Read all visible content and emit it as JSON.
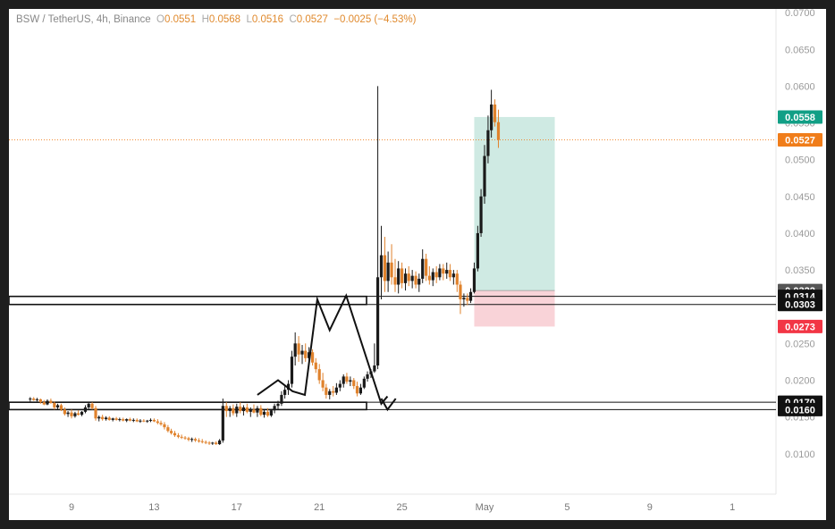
{
  "legend": {
    "symbol": "BSW / TetherUS, 4h, Binance",
    "o_label": "O",
    "o_value": "0.0551",
    "h_label": "H",
    "h_value": "0.0568",
    "l_label": "L",
    "l_value": "0.0516",
    "c_label": "C",
    "c_value": "0.0527",
    "change": "−0.0025 (−4.53%)"
  },
  "colors": {
    "up": "#1a1a1a",
    "down": "#e0822c",
    "last_price": "#f07d1a",
    "target_zone": "#cfeae3",
    "stop_zone": "#f9d3d8",
    "target_label": "#129f86",
    "stop_label": "#f23645",
    "grid_text": "#9a9a9a"
  },
  "chart_data": {
    "type": "candlestick",
    "title": "BSW / TetherUS, 4h, Binance",
    "ylim": [
      0.0045,
      0.0705
    ],
    "y_ticks": [
      "0.0100",
      "0.0150",
      "0.0200",
      "0.0250",
      "0.0300",
      "0.0350",
      "0.0400",
      "0.0450",
      "0.0500",
      "0.0550",
      "0.0600",
      "0.0650",
      "0.0700"
    ],
    "x_ticks": [
      {
        "label": "9",
        "day": 9
      },
      {
        "label": "13",
        "day": 13
      },
      {
        "label": "17",
        "day": 17
      },
      {
        "label": "21",
        "day": 21
      },
      {
        "label": "25",
        "day": 25
      },
      {
        "label": "May",
        "day": 29
      },
      {
        "label": "5",
        "day": 33
      },
      {
        "label": "9",
        "day": 37
      },
      {
        "label": "1",
        "day": 41
      }
    ],
    "price_labels": [
      {
        "value": "0.0558",
        "price": 0.0558,
        "style": "target"
      },
      {
        "value": "0.0527",
        "price": 0.0527,
        "style": "last"
      },
      {
        "value": "0.0322",
        "price": 0.0322,
        "style": "gray"
      },
      {
        "value": "0.0314",
        "price": 0.0314,
        "style": "dark"
      },
      {
        "value": "0.0303",
        "price": 0.0303,
        "style": "dark"
      },
      {
        "value": "0.0273",
        "price": 0.0273,
        "style": "stop"
      },
      {
        "value": "0.0170",
        "price": 0.017,
        "style": "dark"
      },
      {
        "value": "0.0160",
        "price": 0.016,
        "style": "dark"
      }
    ],
    "last_price": 0.0527,
    "zones": [
      {
        "name": "resistance-zone",
        "price_low": 0.0303,
        "price_high": 0.0314
      },
      {
        "name": "support-zone",
        "price_low": 0.016,
        "price_high": 0.017
      }
    ],
    "position": {
      "entry": 0.0322,
      "target": 0.0558,
      "stop": 0.0273,
      "day_start": 28.5,
      "day_end": 32.4
    },
    "pattern_path": [
      [
        18.0,
        0.018
      ],
      [
        19.0,
        0.02
      ],
      [
        19.7,
        0.0185
      ],
      [
        20.3,
        0.018
      ],
      [
        20.9,
        0.031
      ],
      [
        21.5,
        0.0268
      ],
      [
        22.3,
        0.0315
      ],
      [
        24.0,
        0.0168
      ],
      [
        24.3,
        0.0178
      ]
    ],
    "arrow_path": [
      [
        24.0,
        0.0175
      ],
      [
        24.3,
        0.016
      ],
      [
        24.7,
        0.0175
      ]
    ],
    "candles": [
      [
        7.0,
        0.0174,
        0.0177,
        0.0171,
        0.0175
      ],
      [
        7.17,
        0.0175,
        0.0177,
        0.0172,
        0.0173
      ],
      [
        7.33,
        0.0173,
        0.0176,
        0.0171,
        0.0174
      ],
      [
        7.5,
        0.0174,
        0.0175,
        0.0168,
        0.017
      ],
      [
        7.67,
        0.017,
        0.0173,
        0.0166,
        0.0167
      ],
      [
        7.83,
        0.0167,
        0.0174,
        0.0166,
        0.0172
      ],
      [
        8.0,
        0.0172,
        0.0175,
        0.0168,
        0.0169
      ],
      [
        8.17,
        0.0169,
        0.0171,
        0.016,
        0.0163
      ],
      [
        8.33,
        0.0163,
        0.0168,
        0.0161,
        0.0166
      ],
      [
        8.5,
        0.0166,
        0.0168,
        0.0158,
        0.016
      ],
      [
        8.67,
        0.016,
        0.0163,
        0.0152,
        0.0154
      ],
      [
        8.83,
        0.0154,
        0.0158,
        0.015,
        0.0156
      ],
      [
        9.0,
        0.0156,
        0.016,
        0.0148,
        0.0151
      ],
      [
        9.17,
        0.0151,
        0.0157,
        0.0149,
        0.0155
      ],
      [
        9.33,
        0.0155,
        0.0159,
        0.0152,
        0.0153
      ],
      [
        9.5,
        0.0153,
        0.0158,
        0.0151,
        0.0157
      ],
      [
        9.67,
        0.0157,
        0.0166,
        0.0155,
        0.0163
      ],
      [
        9.83,
        0.0163,
        0.017,
        0.0161,
        0.0168
      ],
      [
        10.0,
        0.0168,
        0.017,
        0.016,
        0.0162
      ],
      [
        10.17,
        0.0162,
        0.0165,
        0.0145,
        0.0148
      ],
      [
        10.33,
        0.0148,
        0.0152,
        0.0144,
        0.015
      ],
      [
        10.5,
        0.015,
        0.0153,
        0.0145,
        0.0147
      ],
      [
        10.67,
        0.0147,
        0.0151,
        0.0145,
        0.0149
      ],
      [
        10.83,
        0.0149,
        0.0151,
        0.0145,
        0.0146
      ],
      [
        11.0,
        0.0146,
        0.0149,
        0.0144,
        0.0148
      ],
      [
        11.17,
        0.0148,
        0.015,
        0.0145,
        0.0146
      ],
      [
        11.33,
        0.0146,
        0.0149,
        0.0144,
        0.0147
      ],
      [
        11.5,
        0.0147,
        0.0149,
        0.0144,
        0.0145
      ],
      [
        11.67,
        0.0145,
        0.0148,
        0.0143,
        0.0147
      ],
      [
        11.83,
        0.0147,
        0.0149,
        0.0144,
        0.0145
      ],
      [
        12.0,
        0.0145,
        0.0148,
        0.0143,
        0.0146
      ],
      [
        12.17,
        0.0146,
        0.0148,
        0.0143,
        0.0144
      ],
      [
        12.33,
        0.0144,
        0.0147,
        0.0142,
        0.0145
      ],
      [
        12.5,
        0.0145,
        0.0147,
        0.0143,
        0.0144
      ],
      [
        12.67,
        0.0144,
        0.0146,
        0.0142,
        0.0145
      ],
      [
        12.83,
        0.0145,
        0.0148,
        0.0143,
        0.0146
      ],
      [
        13.0,
        0.0146,
        0.0148,
        0.0143,
        0.0144
      ],
      [
        13.17,
        0.0144,
        0.0147,
        0.014,
        0.0142
      ],
      [
        13.33,
        0.0142,
        0.0145,
        0.0138,
        0.014
      ],
      [
        13.5,
        0.014,
        0.0143,
        0.0133,
        0.0136
      ],
      [
        13.67,
        0.0136,
        0.0139,
        0.0129,
        0.0131
      ],
      [
        13.83,
        0.0131,
        0.0134,
        0.0126,
        0.0128
      ],
      [
        14.0,
        0.0128,
        0.0131,
        0.0123,
        0.0125
      ],
      [
        14.17,
        0.0125,
        0.0128,
        0.0121,
        0.0123
      ],
      [
        14.33,
        0.0123,
        0.0126,
        0.012,
        0.0122
      ],
      [
        14.5,
        0.0122,
        0.0124,
        0.0119,
        0.0121
      ],
      [
        14.67,
        0.0121,
        0.0123,
        0.0117,
        0.0119
      ],
      [
        14.83,
        0.0119,
        0.0122,
        0.0116,
        0.012
      ],
      [
        15.0,
        0.012,
        0.0122,
        0.0116,
        0.0118
      ],
      [
        15.17,
        0.0118,
        0.0121,
        0.0115,
        0.0117
      ],
      [
        15.33,
        0.0117,
        0.012,
        0.0114,
        0.0116
      ],
      [
        15.5,
        0.0116,
        0.0118,
        0.0113,
        0.0115
      ],
      [
        15.67,
        0.0115,
        0.0117,
        0.0112,
        0.0114
      ],
      [
        15.83,
        0.0114,
        0.0116,
        0.0112,
        0.0115
      ],
      [
        16.0,
        0.0115,
        0.0117,
        0.0112,
        0.0113
      ],
      [
        16.17,
        0.0113,
        0.012,
        0.0112,
        0.0118
      ],
      [
        16.33,
        0.0118,
        0.0175,
        0.0115,
        0.0165
      ],
      [
        16.5,
        0.0165,
        0.017,
        0.015,
        0.0158
      ],
      [
        16.67,
        0.0158,
        0.0165,
        0.015,
        0.0162
      ],
      [
        16.83,
        0.0162,
        0.0167,
        0.0152,
        0.0155
      ],
      [
        17.0,
        0.0155,
        0.0168,
        0.015,
        0.0164
      ],
      [
        17.17,
        0.0164,
        0.017,
        0.0155,
        0.0158
      ],
      [
        17.33,
        0.0158,
        0.0166,
        0.0152,
        0.0163
      ],
      [
        17.5,
        0.0163,
        0.0168,
        0.0155,
        0.0157
      ],
      [
        17.67,
        0.0157,
        0.0163,
        0.015,
        0.016
      ],
      [
        17.83,
        0.016,
        0.0167,
        0.0155,
        0.0156
      ],
      [
        18.0,
        0.0156,
        0.0165,
        0.015,
        0.0162
      ],
      [
        18.17,
        0.0162,
        0.0166,
        0.0151,
        0.0153
      ],
      [
        18.33,
        0.0153,
        0.016,
        0.0149,
        0.0157
      ],
      [
        18.5,
        0.0157,
        0.0162,
        0.015,
        0.0152
      ],
      [
        18.67,
        0.0152,
        0.0161,
        0.015,
        0.0159
      ],
      [
        18.83,
        0.0159,
        0.0168,
        0.0155,
        0.0165
      ],
      [
        19.0,
        0.0165,
        0.0172,
        0.016,
        0.0168
      ],
      [
        19.17,
        0.0168,
        0.0185,
        0.0165,
        0.018
      ],
      [
        19.33,
        0.018,
        0.0193,
        0.0175,
        0.0187
      ],
      [
        19.5,
        0.0187,
        0.02,
        0.018,
        0.0195
      ],
      [
        19.67,
        0.0195,
        0.024,
        0.019,
        0.0232
      ],
      [
        19.83,
        0.0232,
        0.0265,
        0.022,
        0.025
      ],
      [
        20.0,
        0.025,
        0.026,
        0.0225,
        0.0235
      ],
      [
        20.17,
        0.0235,
        0.0248,
        0.0222,
        0.024
      ],
      [
        20.33,
        0.024,
        0.025,
        0.0225,
        0.023
      ],
      [
        20.5,
        0.023,
        0.0245,
        0.0222,
        0.0238
      ],
      [
        20.67,
        0.0238,
        0.0242,
        0.022,
        0.0224
      ],
      [
        20.83,
        0.0224,
        0.023,
        0.021,
        0.0215
      ],
      [
        21.0,
        0.0215,
        0.0222,
        0.0195,
        0.02
      ],
      [
        21.17,
        0.02,
        0.021,
        0.0185,
        0.019
      ],
      [
        21.33,
        0.019,
        0.0195,
        0.0175,
        0.018
      ],
      [
        21.5,
        0.018,
        0.0188,
        0.0174,
        0.0185
      ],
      [
        21.67,
        0.0185,
        0.0192,
        0.0178,
        0.0183
      ],
      [
        21.83,
        0.0183,
        0.0196,
        0.018,
        0.019
      ],
      [
        22.0,
        0.019,
        0.02,
        0.0185,
        0.0195
      ],
      [
        22.17,
        0.0195,
        0.0208,
        0.019,
        0.0205
      ],
      [
        22.33,
        0.0205,
        0.021,
        0.0195,
        0.0198
      ],
      [
        22.5,
        0.0198,
        0.0205,
        0.0192,
        0.02
      ],
      [
        22.67,
        0.02,
        0.0203,
        0.0188,
        0.0192
      ],
      [
        22.83,
        0.0192,
        0.0198,
        0.0178,
        0.0182
      ],
      [
        23.0,
        0.0182,
        0.0195,
        0.018,
        0.019
      ],
      [
        23.17,
        0.019,
        0.0205,
        0.0188,
        0.0202
      ],
      [
        23.33,
        0.0202,
        0.0212,
        0.0198,
        0.0208
      ],
      [
        23.5,
        0.0208,
        0.0215,
        0.0203,
        0.0212
      ],
      [
        23.67,
        0.0212,
        0.025,
        0.021,
        0.022
      ],
      [
        23.83,
        0.022,
        0.06,
        0.0215,
        0.034
      ],
      [
        24.0,
        0.034,
        0.041,
        0.031,
        0.037
      ],
      [
        24.17,
        0.037,
        0.0395,
        0.032,
        0.0335
      ],
      [
        24.33,
        0.0335,
        0.0375,
        0.032,
        0.036
      ],
      [
        24.5,
        0.036,
        0.0385,
        0.033,
        0.034
      ],
      [
        24.67,
        0.034,
        0.0365,
        0.032,
        0.033
      ],
      [
        24.83,
        0.033,
        0.0362,
        0.0318,
        0.0352
      ],
      [
        25.0,
        0.0352,
        0.036,
        0.0325,
        0.0332
      ],
      [
        25.17,
        0.0332,
        0.0352,
        0.0322,
        0.0345
      ],
      [
        25.33,
        0.0345,
        0.0355,
        0.0328,
        0.0335
      ],
      [
        25.5,
        0.0335,
        0.035,
        0.0325,
        0.0342
      ],
      [
        25.67,
        0.0342,
        0.0348,
        0.0325,
        0.033
      ],
      [
        25.83,
        0.033,
        0.0345,
        0.032,
        0.0338
      ],
      [
        26.0,
        0.0338,
        0.0378,
        0.0332,
        0.0365
      ],
      [
        26.17,
        0.0365,
        0.0372,
        0.0335,
        0.0342
      ],
      [
        26.33,
        0.0342,
        0.0355,
        0.033,
        0.0336
      ],
      [
        26.5,
        0.0336,
        0.0352,
        0.0328,
        0.0347
      ],
      [
        26.67,
        0.0347,
        0.0355,
        0.0332,
        0.034
      ],
      [
        26.83,
        0.034,
        0.0358,
        0.0336,
        0.0352
      ],
      [
        27.0,
        0.0352,
        0.0358,
        0.0336,
        0.0345
      ],
      [
        27.17,
        0.0345,
        0.036,
        0.0338,
        0.035
      ],
      [
        27.33,
        0.035,
        0.0358,
        0.0335,
        0.034
      ],
      [
        27.5,
        0.034,
        0.035,
        0.033,
        0.0345
      ],
      [
        27.67,
        0.0345,
        0.035,
        0.032,
        0.033
      ],
      [
        27.83,
        0.033,
        0.0335,
        0.029,
        0.031
      ],
      [
        28.0,
        0.031,
        0.0318,
        0.03,
        0.0312
      ],
      [
        28.17,
        0.0312,
        0.0318,
        0.0302,
        0.0308
      ],
      [
        28.33,
        0.0308,
        0.0325,
        0.0305,
        0.032
      ],
      [
        28.5,
        0.032,
        0.036,
        0.0318,
        0.0352
      ],
      [
        28.67,
        0.0352,
        0.041,
        0.0348,
        0.04
      ],
      [
        28.83,
        0.04,
        0.046,
        0.0395,
        0.045
      ],
      [
        29.0,
        0.045,
        0.052,
        0.044,
        0.0505
      ],
      [
        29.17,
        0.0505,
        0.056,
        0.0495,
        0.054
      ],
      [
        29.33,
        0.054,
        0.0595,
        0.053,
        0.0575
      ],
      [
        29.5,
        0.0575,
        0.0582,
        0.0545,
        0.0551
      ],
      [
        29.67,
        0.0551,
        0.0568,
        0.0516,
        0.0527
      ]
    ]
  }
}
